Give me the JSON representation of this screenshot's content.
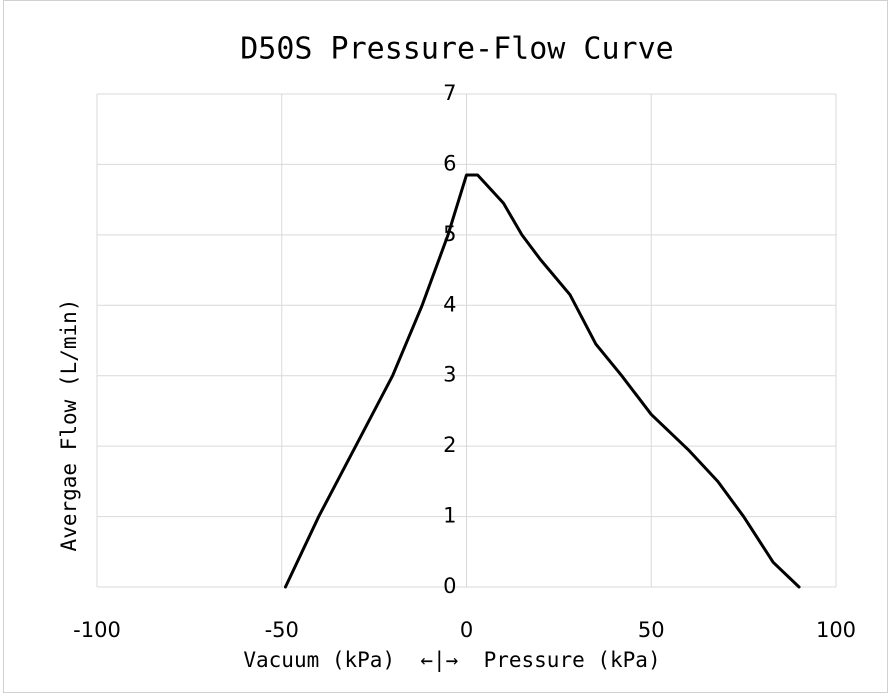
{
  "chart_data": {
    "type": "line",
    "title": "D50S Pressure-Flow Curve",
    "xlabel": "Vacuum (kPa)  ←|→  Pressure (kPa)",
    "ylabel": "Avergae Flow (L/min)",
    "series": [
      {
        "name": "D50S",
        "color": "#000000",
        "x": [
          -49,
          -40,
          -30,
          -20,
          -12,
          -5,
          0,
          3,
          10,
          15,
          20,
          28,
          35,
          42,
          50,
          60,
          68,
          75,
          83,
          90
        ],
        "values": [
          0,
          1,
          2,
          3,
          4,
          5,
          5.85,
          5.85,
          5.45,
          5,
          4.65,
          4.15,
          3.45,
          3.0,
          2.45,
          1.95,
          1.5,
          1.0,
          0.35,
          0
        ]
      }
    ],
    "xlim": [
      -100,
      100
    ],
    "xticks": [
      -100,
      -50,
      0,
      50,
      100
    ],
    "ylim": [
      0,
      7
    ],
    "yticks": [
      0,
      1,
      2,
      3,
      4,
      5,
      6,
      7
    ],
    "grid": true
  }
}
